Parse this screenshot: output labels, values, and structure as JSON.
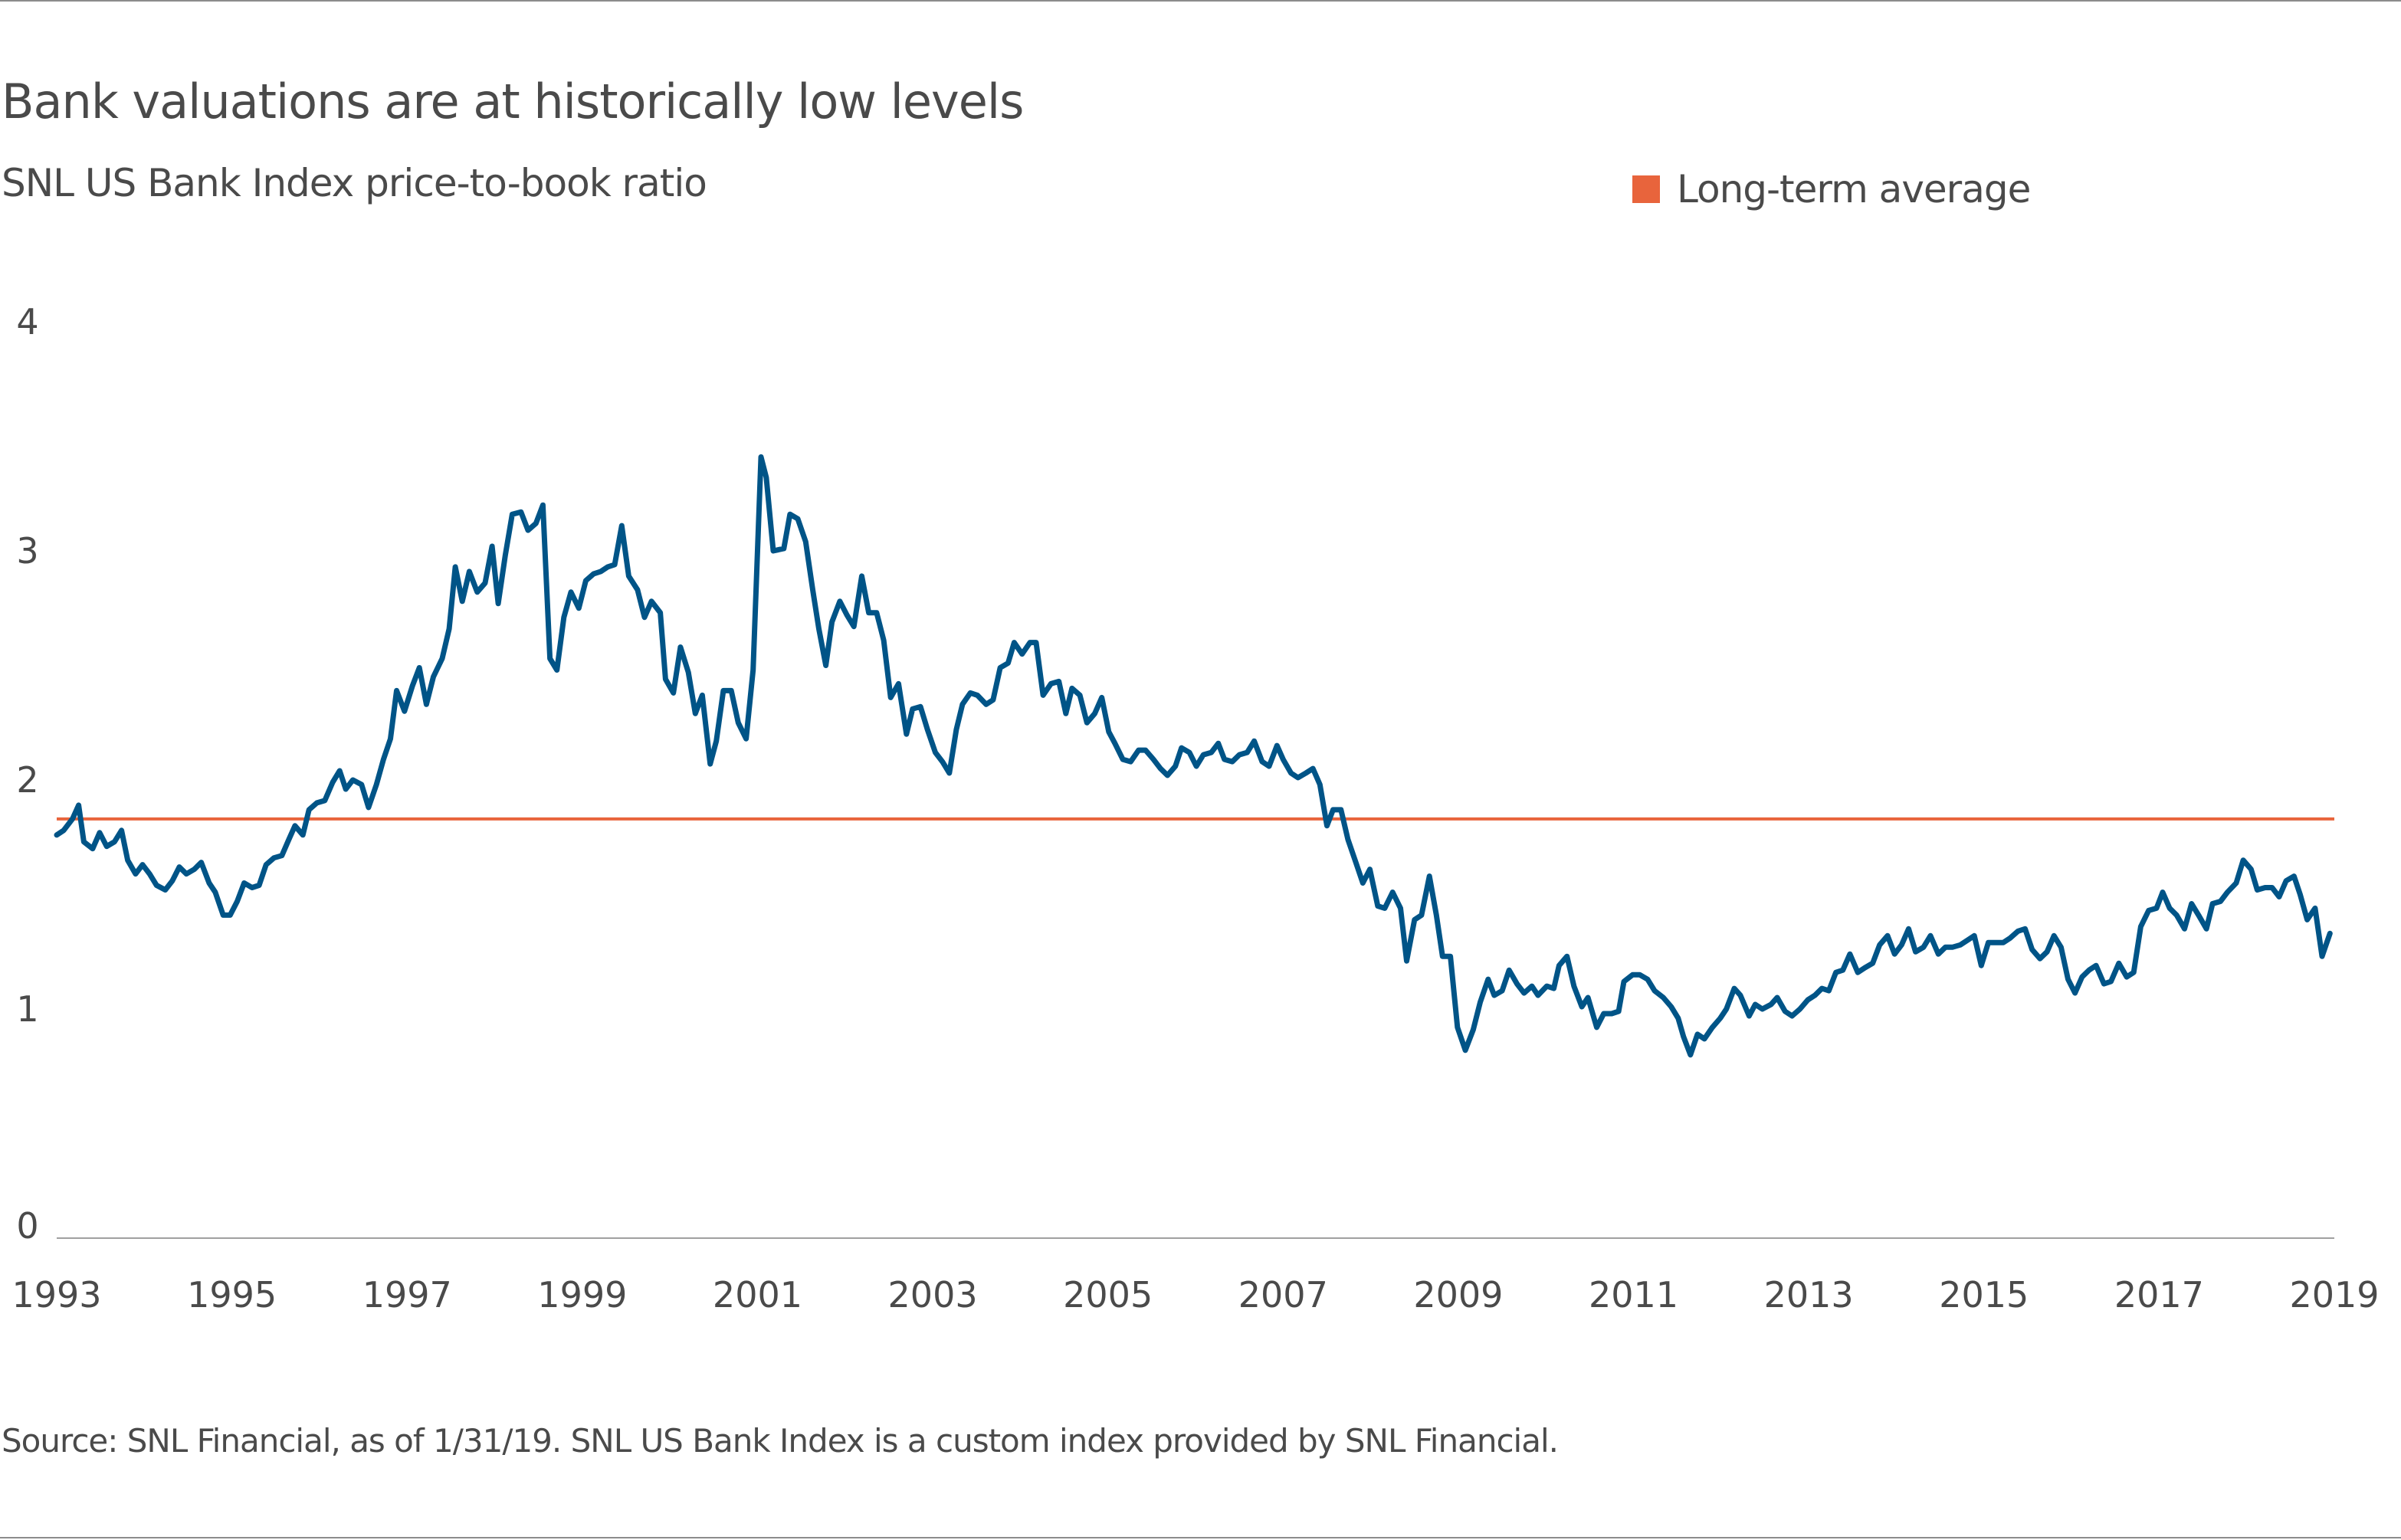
{
  "chart_data": {
    "type": "line",
    "title": "Bank valuations are at historically low levels",
    "subtitle": "SNL US Bank Index price-to-book ratio",
    "source": "Source: SNL Financial, as of 1/31/19. SNL US Bank Index is a custom index provided by SNL Financial.",
    "xlabel": "",
    "ylabel": "",
    "xlim": [
      1993,
      2019
    ],
    "ylim": [
      0,
      4
    ],
    "x_ticks": [
      "1993",
      "1995",
      "1997",
      "1999",
      "2001",
      "2003",
      "2005",
      "2007",
      "2009",
      "2011",
      "2013",
      "2015",
      "2017",
      "2019"
    ],
    "y_ticks": [
      "0",
      "1",
      "2",
      "3",
      "4"
    ],
    "grid": false,
    "legend_position": "top-right",
    "reference_line": {
      "name": "Long-term average",
      "value": 1.83,
      "color": "#e8643c"
    },
    "series": [
      {
        "color": "#005487",
        "x": [
          1993.0,
          1993.08,
          1993.18,
          1993.25,
          1993.31,
          1993.41,
          1993.49,
          1993.57,
          1993.66,
          1993.74,
          1993.81,
          1993.9,
          1993.98,
          1994.06,
          1994.14,
          1994.24,
          1994.32,
          1994.4,
          1994.48,
          1994.57,
          1994.65,
          1994.74,
          1994.81,
          1994.9,
          1994.98,
          1995.06,
          1995.14,
          1995.23,
          1995.31,
          1995.39,
          1995.48,
          1995.57,
          1995.65,
          1995.72,
          1995.81,
          1995.88,
          1995.97,
          1996.06,
          1996.15,
          1996.23,
          1996.3,
          1996.38,
          1996.48,
          1996.56,
          1996.65,
          1996.73,
          1996.81,
          1996.88,
          1996.97,
          1997.06,
          1997.14,
          1997.22,
          1997.3,
          1997.4,
          1997.48,
          1997.55,
          1997.63,
          1997.71,
          1997.8,
          1997.89,
          1997.97,
          1998.04,
          1998.12,
          1998.2,
          1998.3,
          1998.38,
          1998.47,
          1998.55,
          1998.63,
          1998.71,
          1998.79,
          1998.87,
          1998.96,
          1999.04,
          1999.13,
          1999.21,
          1999.29,
          1999.37,
          1999.45,
          1999.53,
          1999.63,
          1999.71,
          1999.79,
          1999.89,
          1999.95,
          2000.04,
          2000.12,
          2000.21,
          2000.29,
          2000.37,
          2000.46,
          2000.53,
          2000.61,
          2000.7,
          2000.78,
          2000.87,
          2000.95,
          2001.04,
          2001.1,
          2001.18,
          2001.3,
          2001.37,
          2001.46,
          2001.55,
          2001.63,
          2001.7,
          2001.78,
          2001.85,
          2001.94,
          2002.02,
          2002.1,
          2002.19,
          2002.27,
          2002.36,
          2002.44,
          2002.52,
          2002.61,
          2002.7,
          2002.77,
          2002.86,
          2002.94,
          2003.03,
          2003.11,
          2003.19,
          2003.27,
          2003.34,
          2003.43,
          2003.51,
          2003.61,
          2003.69,
          2003.77,
          2003.86,
          2003.93,
          2004.02,
          2004.11,
          2004.18,
          2004.26,
          2004.35,
          2004.44,
          2004.52,
          2004.59,
          2004.68,
          2004.76,
          2004.85,
          2004.93,
          2005.01,
          2005.08,
          2005.17,
          2005.26,
          2005.35,
          2005.43,
          2005.52,
          2005.6,
          2005.68,
          2005.77,
          2005.84,
          2005.93,
          2006.01,
          2006.09,
          2006.18,
          2006.26,
          2006.33,
          2006.42,
          2006.5,
          2006.59,
          2006.67,
          2006.76,
          2006.84,
          2006.93,
          2007.0,
          2007.09,
          2007.17,
          2007.26,
          2007.34,
          2007.42,
          2007.5,
          2007.57,
          2007.66,
          2007.74,
          2007.83,
          2007.91,
          2007.99,
          2008.08,
          2008.16,
          2008.25,
          2008.34,
          2008.41,
          2008.5,
          2008.58,
          2008.67,
          2008.75,
          2008.82,
          2008.91,
          2008.99,
          2009.08,
          2009.17,
          2009.25,
          2009.34,
          2009.41,
          2009.5,
          2009.58,
          2009.67,
          2009.75,
          2009.84,
          2009.91,
          2010.01,
          2010.09,
          2010.15,
          2010.24,
          2010.32,
          2010.41,
          2010.48,
          2010.58,
          2010.66,
          2010.75,
          2010.83,
          2010.89,
          2010.99,
          2011.07,
          2011.16,
          2011.24,
          2011.34,
          2011.43,
          2011.51,
          2011.57,
          2011.65,
          2011.73,
          2011.81,
          2011.9,
          2011.99,
          2012.06,
          2012.15,
          2012.22,
          2012.32,
          2012.39,
          2012.47,
          2012.57,
          2012.64,
          2012.73,
          2012.81,
          2012.9,
          2012.99,
          2013.07,
          2013.15,
          2013.23,
          2013.31,
          2013.39,
          2013.47,
          2013.56,
          2013.64,
          2013.73,
          2013.81,
          2013.9,
          2013.98,
          2014.06,
          2014.14,
          2014.22,
          2014.31,
          2014.39,
          2014.48,
          2014.56,
          2014.64,
          2014.73,
          2014.81,
          2014.89,
          2014.97,
          2015.05,
          2015.13,
          2015.22,
          2015.3,
          2015.39,
          2015.47,
          2015.55,
          2015.64,
          2015.72,
          2015.8,
          2015.88,
          2015.96,
          2016.04,
          2016.12,
          2016.2,
          2016.28,
          2016.37,
          2016.45,
          2016.54,
          2016.63,
          2016.71,
          2016.79,
          2016.88,
          2016.97,
          2017.04,
          2017.12,
          2017.2,
          2017.29,
          2017.37,
          2017.45,
          2017.54,
          2017.61,
          2017.7,
          2017.78,
          2017.88,
          2017.96,
          2018.05,
          2018.12,
          2018.21,
          2018.29,
          2018.37,
          2018.45,
          2018.54,
          2018.61,
          2018.69,
          2018.78,
          2018.86,
          2018.95
        ],
        "values": [
          1.76,
          1.78,
          1.83,
          1.89,
          1.73,
          1.7,
          1.77,
          1.71,
          1.73,
          1.78,
          1.65,
          1.59,
          1.63,
          1.59,
          1.54,
          1.52,
          1.56,
          1.62,
          1.59,
          1.61,
          1.64,
          1.55,
          1.51,
          1.41,
          1.41,
          1.47,
          1.55,
          1.53,
          1.54,
          1.63,
          1.66,
          1.67,
          1.74,
          1.8,
          1.76,
          1.87,
          1.9,
          1.91,
          1.99,
          2.04,
          1.96,
          2.0,
          1.98,
          1.88,
          1.98,
          2.09,
          2.18,
          2.39,
          2.3,
          2.41,
          2.49,
          2.33,
          2.45,
          2.53,
          2.66,
          2.93,
          2.78,
          2.91,
          2.82,
          2.86,
          3.02,
          2.77,
          2.98,
          3.16,
          3.17,
          3.09,
          3.12,
          3.2,
          2.53,
          2.48,
          2.71,
          2.82,
          2.75,
          2.87,
          2.9,
          2.91,
          2.93,
          2.94,
          3.11,
          2.89,
          2.83,
          2.71,
          2.78,
          2.73,
          2.44,
          2.38,
          2.58,
          2.47,
          2.29,
          2.37,
          2.07,
          2.17,
          2.39,
          2.39,
          2.25,
          2.18,
          2.48,
          3.41,
          3.32,
          3.0,
          3.01,
          3.16,
          3.14,
          3.04,
          2.83,
          2.66,
          2.5,
          2.69,
          2.78,
          2.72,
          2.67,
          2.89,
          2.73,
          2.73,
          2.61,
          2.36,
          2.42,
          2.2,
          2.31,
          2.32,
          2.22,
          2.12,
          2.08,
          2.03,
          2.22,
          2.33,
          2.38,
          2.37,
          2.33,
          2.35,
          2.49,
          2.51,
          2.6,
          2.55,
          2.6,
          2.6,
          2.37,
          2.42,
          2.43,
          2.29,
          2.4,
          2.37,
          2.25,
          2.29,
          2.36,
          2.21,
          2.16,
          2.09,
          2.08,
          2.13,
          2.13,
          2.09,
          2.05,
          2.02,
          2.06,
          2.14,
          2.12,
          2.06,
          2.11,
          2.12,
          2.16,
          2.09,
          2.08,
          2.11,
          2.12,
          2.17,
          2.08,
          2.06,
          2.15,
          2.09,
          2.03,
          2.01,
          2.03,
          2.05,
          1.98,
          1.8,
          1.87,
          1.87,
          1.74,
          1.64,
          1.55,
          1.61,
          1.45,
          1.44,
          1.51,
          1.44,
          1.21,
          1.39,
          1.41,
          1.58,
          1.41,
          1.23,
          1.23,
          0.92,
          0.82,
          0.91,
          1.03,
          1.13,
          1.06,
          1.08,
          1.17,
          1.11,
          1.07,
          1.1,
          1.06,
          1.1,
          1.09,
          1.19,
          1.23,
          1.1,
          1.01,
          1.05,
          0.92,
          0.98,
          0.98,
          0.99,
          1.12,
          1.15,
          1.15,
          1.13,
          1.08,
          1.05,
          1.01,
          0.96,
          0.88,
          0.8,
          0.89,
          0.87,
          0.92,
          0.96,
          1.0,
          1.09,
          1.06,
          0.97,
          1.02,
          1.0,
          1.02,
          1.05,
          0.99,
          0.97,
          1.0,
          1.04,
          1.06,
          1.09,
          1.08,
          1.16,
          1.17,
          1.24,
          1.16,
          1.18,
          1.2,
          1.28,
          1.32,
          1.24,
          1.28,
          1.35,
          1.25,
          1.27,
          1.32,
          1.24,
          1.27,
          1.27,
          1.28,
          1.3,
          1.32,
          1.19,
          1.29,
          1.29,
          1.29,
          1.31,
          1.34,
          1.35,
          1.26,
          1.22,
          1.25,
          1.32,
          1.27,
          1.13,
          1.07,
          1.14,
          1.17,
          1.19,
          1.11,
          1.12,
          1.2,
          1.14,
          1.16,
          1.36,
          1.43,
          1.44,
          1.51,
          1.44,
          1.41,
          1.35,
          1.46,
          1.41,
          1.35,
          1.46,
          1.47,
          1.51,
          1.55,
          1.65,
          1.61,
          1.52,
          1.53,
          1.53,
          1.49,
          1.56,
          1.58,
          1.5,
          1.39,
          1.44,
          1.23,
          1.33
        ]
      }
    ]
  }
}
